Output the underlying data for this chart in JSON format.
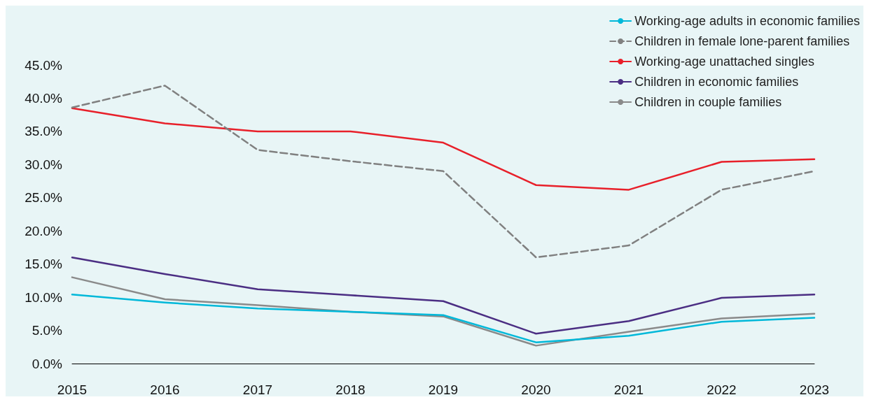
{
  "chart_data": {
    "type": "line",
    "categories": [
      "2015",
      "2016",
      "2017",
      "2018",
      "2019",
      "2020",
      "2021",
      "2022",
      "2023"
    ],
    "series": [
      {
        "name": "Working-age adults in economic families",
        "color": "#00b8d9",
        "line_style": "solid",
        "values": [
          10.4,
          9.2,
          8.3,
          7.8,
          7.3,
          3.2,
          4.2,
          6.3,
          6.9
        ]
      },
      {
        "name": "Children in female lone-parent families",
        "color": "#808080",
        "line_style": "dashed",
        "values": [
          38.6,
          41.9,
          32.2,
          30.5,
          29.0,
          16.0,
          17.8,
          26.2,
          29.0
        ]
      },
      {
        "name": "Working-age unattached singles",
        "color": "#e8202a",
        "line_style": "solid",
        "values": [
          38.5,
          36.2,
          35.0,
          35.0,
          33.3,
          26.9,
          26.2,
          30.4,
          30.8
        ]
      },
      {
        "name": "Children in economic families",
        "color": "#4b2e83",
        "line_style": "solid",
        "values": [
          16.0,
          13.5,
          11.2,
          10.3,
          9.4,
          4.5,
          6.4,
          9.9,
          10.4
        ]
      },
      {
        "name": "Children in couple families",
        "color": "#8a8a8a",
        "line_style": "solid",
        "values": [
          13.0,
          9.7,
          8.8,
          7.8,
          7.1,
          2.7,
          4.8,
          6.8,
          7.5
        ]
      }
    ],
    "ylim": [
      0,
      45
    ],
    "yticks": [
      {
        "value": 0,
        "label": "0.0%"
      },
      {
        "value": 5,
        "label": "5.0%"
      },
      {
        "value": 10,
        "label": "10.0%"
      },
      {
        "value": 15,
        "label": "15.0%"
      },
      {
        "value": 20,
        "label": "20.0%"
      },
      {
        "value": 25,
        "label": "25.0%"
      },
      {
        "value": 30,
        "label": "30.0%"
      },
      {
        "value": 35,
        "label": "35.0%"
      },
      {
        "value": 40,
        "label": "40.0%"
      },
      {
        "value": 45,
        "label": "45.0%"
      }
    ],
    "grid": false,
    "legend": "top right",
    "marker": "none"
  }
}
